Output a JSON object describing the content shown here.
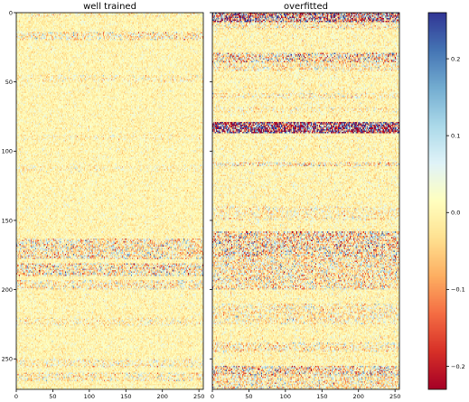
{
  "chart_data": [
    {
      "type": "heatmap",
      "title": "well trained",
      "xlabel": "",
      "ylabel": "",
      "xlim": [
        0,
        256
      ],
      "ylim": [
        272,
        0
      ],
      "xticks": [
        0,
        50,
        100,
        150,
        200,
        250
      ],
      "yticks": [
        0,
        50,
        100,
        150,
        200,
        250
      ],
      "noise_sigma": 0.025,
      "bands": [
        {
          "rows": [
            0,
            3
          ],
          "sigma": 0.04
        },
        {
          "rows": [
            14,
            20
          ],
          "sigma": 0.06
        },
        {
          "rows": [
            45,
            50
          ],
          "sigma": 0.04
        },
        {
          "rows": [
            88,
            92
          ],
          "sigma": 0.035
        },
        {
          "rows": [
            110,
            115
          ],
          "sigma": 0.035
        },
        {
          "rows": [
            163,
            178
          ],
          "sigma": 0.075
        },
        {
          "rows": [
            181,
            190
          ],
          "sigma": 0.085
        },
        {
          "rows": [
            193,
            200
          ],
          "sigma": 0.06
        },
        {
          "rows": [
            220,
            226
          ],
          "sigma": 0.045
        },
        {
          "rows": [
            250,
            256
          ],
          "sigma": 0.05
        },
        {
          "rows": [
            260,
            266
          ],
          "sigma": 0.055
        }
      ]
    },
    {
      "type": "heatmap",
      "title": "overfitted",
      "xlabel": "",
      "ylabel": "",
      "xlim": [
        0,
        256
      ],
      "ylim": [
        272,
        0
      ],
      "xticks": [
        0,
        50,
        100,
        150,
        200,
        250
      ],
      "yticks": [
        0,
        50,
        100,
        150,
        200,
        250
      ],
      "noise_sigma": 0.03,
      "bands": [
        {
          "rows": [
            0,
            7
          ],
          "sigma": 0.2
        },
        {
          "rows": [
            7,
            12
          ],
          "sigma": 0.06
        },
        {
          "rows": [
            29,
            36
          ],
          "sigma": 0.1
        },
        {
          "rows": [
            36,
            42
          ],
          "sigma": 0.06
        },
        {
          "rows": [
            58,
            62
          ],
          "sigma": 0.05
        },
        {
          "rows": [
            68,
            72
          ],
          "sigma": 0.045
        },
        {
          "rows": [
            79,
            87
          ],
          "sigma": 0.3
        },
        {
          "rows": [
            108,
            111
          ],
          "sigma": 0.07
        },
        {
          "rows": [
            140,
            150
          ],
          "sigma": 0.05
        },
        {
          "rows": [
            158,
            176
          ],
          "sigma": 0.1
        },
        {
          "rows": [
            176,
            200
          ],
          "sigma": 0.075
        },
        {
          "rows": [
            210,
            225
          ],
          "sigma": 0.055
        },
        {
          "rows": [
            238,
            245
          ],
          "sigma": 0.06
        },
        {
          "rows": [
            255,
            262
          ],
          "sigma": 0.1
        },
        {
          "rows": [
            262,
            272
          ],
          "sigma": 0.07
        }
      ]
    }
  ],
  "colorbar": {
    "colormap": "RdYlBu",
    "vmin": -0.23,
    "vmax": 0.26,
    "ticks": [
      0.2,
      0.1,
      0.0,
      -0.1,
      -0.2
    ],
    "tick_labels": [
      "0.2",
      "0.1",
      "0.0",
      "−0.1",
      "−0.2"
    ]
  }
}
